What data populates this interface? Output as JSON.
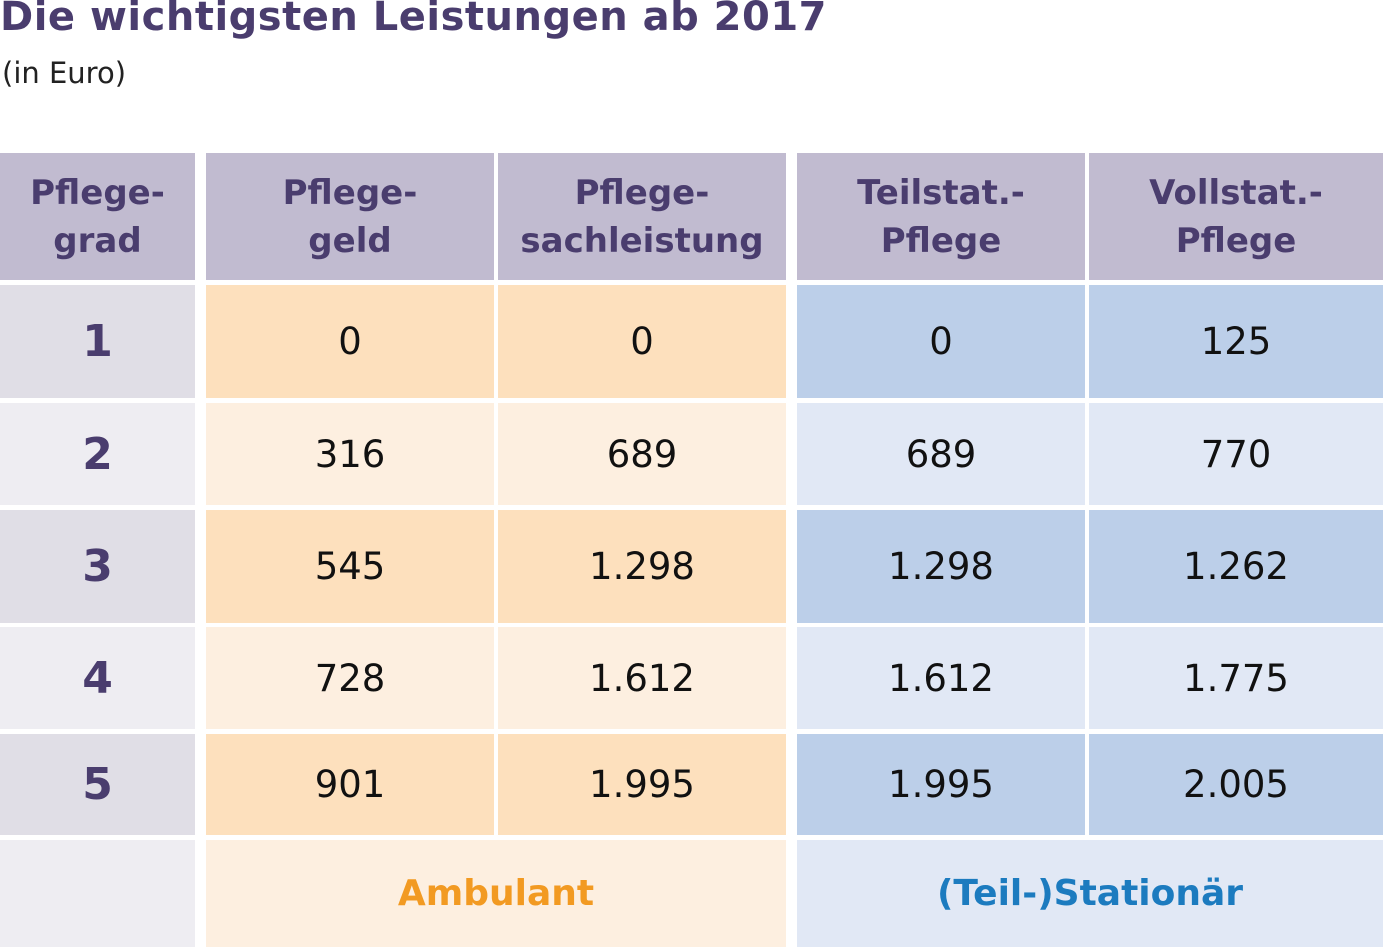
{
  "title": "Die wichtigsten Leistungen ab 2017",
  "subtitle": "(in Euro)",
  "table": {
    "headers": {
      "pflegegrad": [
        "Pflege-",
        "grad"
      ],
      "pflegegeld": [
        "Pflege-",
        "geld"
      ],
      "sachleistung": [
        "Pflege-",
        "sachleistung"
      ],
      "teilstat": [
        "Teilstat.-",
        "Pflege"
      ],
      "vollstat": [
        "Vollstat.-",
        "Pflege"
      ]
    },
    "rows": [
      {
        "grad": "1",
        "pflegegeld": "0",
        "sachleistung": "0",
        "teilstat": "0",
        "vollstat": "125"
      },
      {
        "grad": "2",
        "pflegegeld": "316",
        "sachleistung": "689",
        "teilstat": "689",
        "vollstat": "770"
      },
      {
        "grad": "3",
        "pflegegeld": "545",
        "sachleistung": "1.298",
        "teilstat": "1.298",
        "vollstat": "1.262"
      },
      {
        "grad": "4",
        "pflegegeld": "728",
        "sachleistung": "1.612",
        "teilstat": "1.612",
        "vollstat": "1.775"
      },
      {
        "grad": "5",
        "pflegegeld": "901",
        "sachleistung": "1.995",
        "teilstat": "1.995",
        "vollstat": "2.005"
      }
    ],
    "footer": {
      "ambulant": "Ambulant",
      "stationaer": "(Teil-)Stationär"
    }
  },
  "colors": {
    "header_bg": "#c1bbd0",
    "title": "#4a3d6e",
    "ambulant_dark": "#fde0bd",
    "ambulant_light": "#fdefe0",
    "stationaer_dark": "#bccfe9",
    "stationaer_light": "#e1e8f5",
    "ambulant_label": "#f29a22",
    "stationaer_label": "#1c7bbf"
  }
}
